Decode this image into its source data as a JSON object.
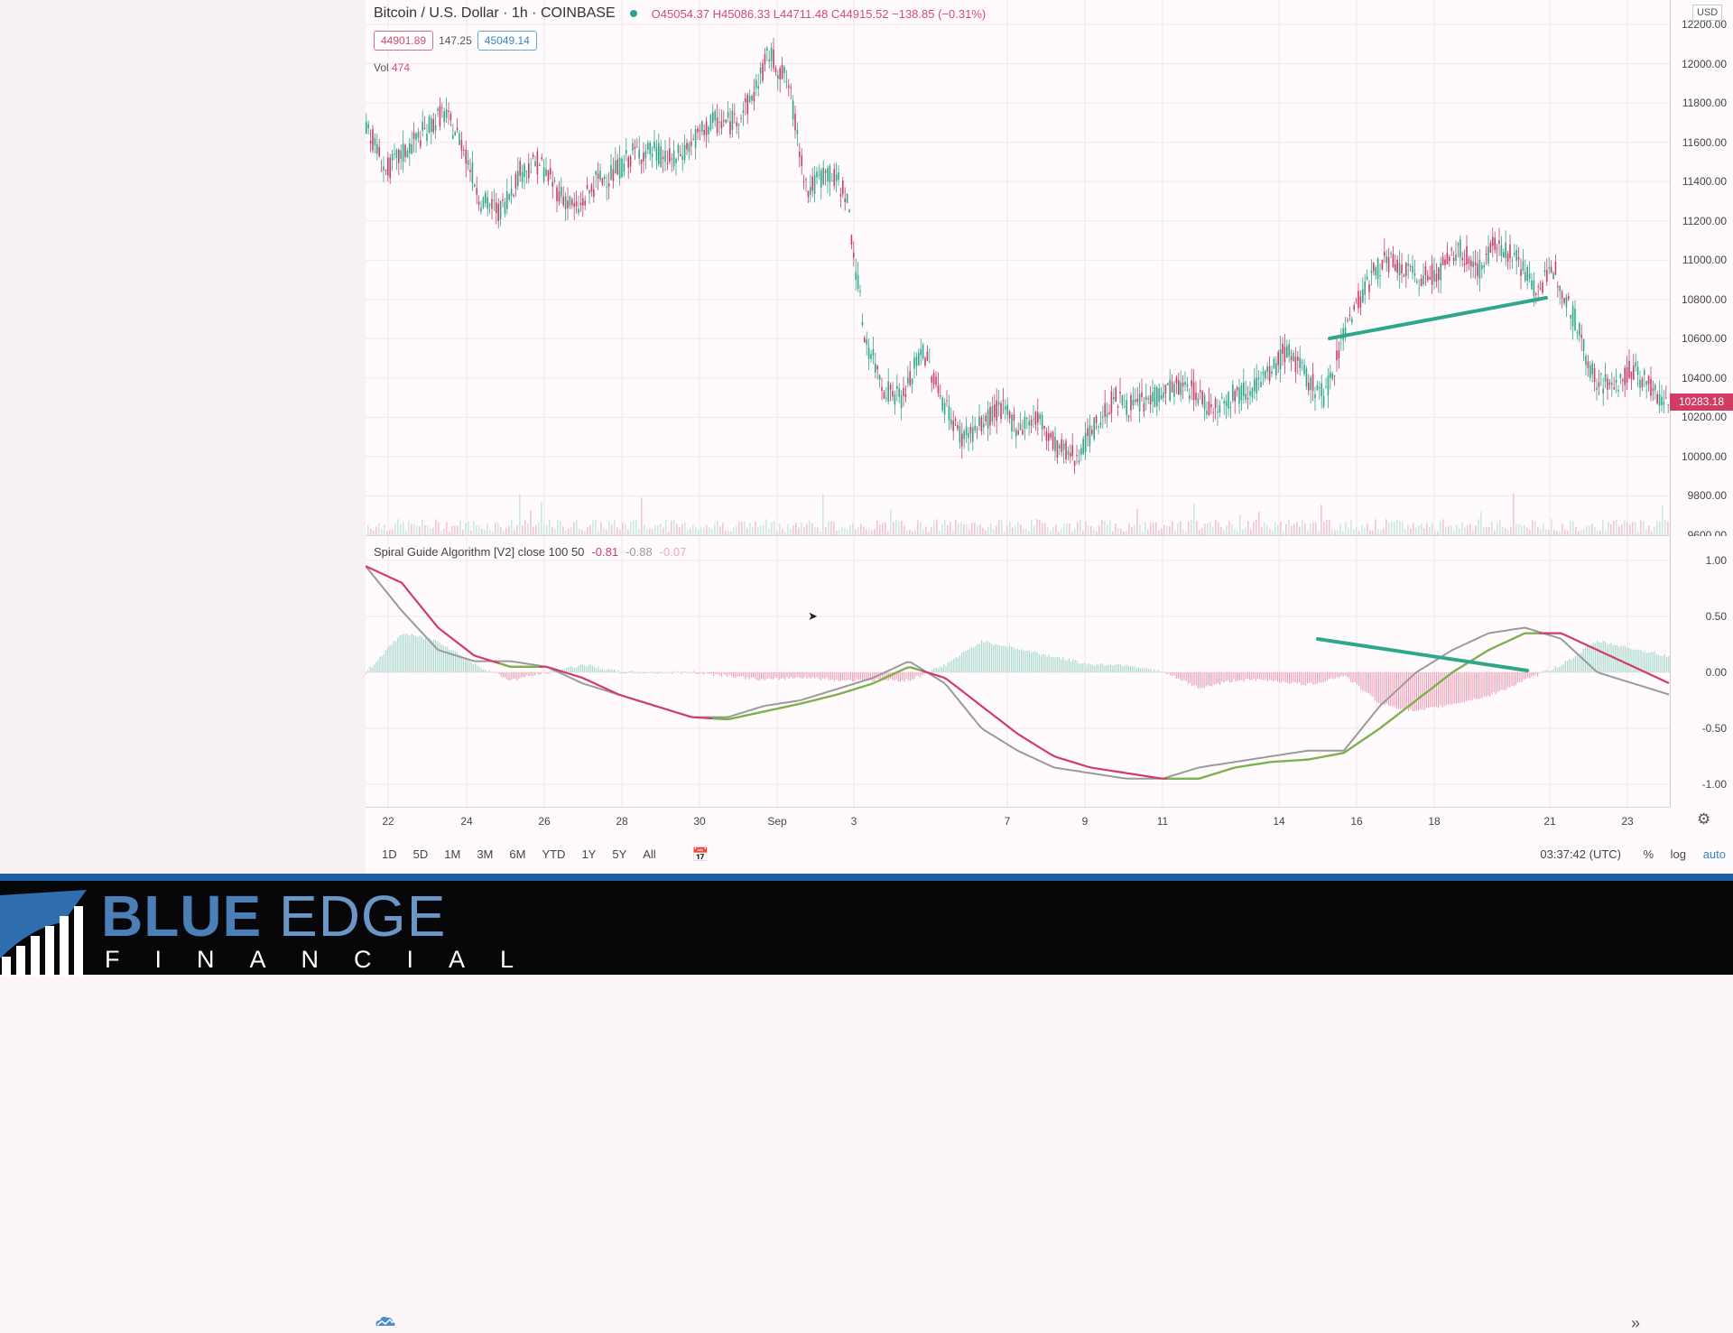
{
  "symbol": {
    "title": "Bitcoin / U.S. Dollar · 1h · COINBASE",
    "ohlc": "O45054.37 H45086.33 L44711.48 C44915.52 −138.85 (−0.31%)",
    "bid": "44901.89",
    "spread": "147.25",
    "ask": "45049.14",
    "volume_label": "Vol",
    "volume_value": "474",
    "last_price": "10283.18",
    "currency": "USD"
  },
  "indicator": {
    "name": "Spiral Guide Algorithm [V2] close 100 50",
    "v1": "-0.81",
    "v2": "-0.88",
    "v3": "-0.07"
  },
  "price_axis": [
    "12200.00",
    "12000.00",
    "11800.00",
    "11600.00",
    "11400.00",
    "11200.00",
    "11000.00",
    "10800.00",
    "10600.00",
    "10400.00",
    "10200.00",
    "10000.00",
    "9800.00",
    "9600.00"
  ],
  "osc_axis": [
    "1.00",
    "0.50",
    "0.00",
    "-0.50",
    "-1.00"
  ],
  "time_axis": [
    "22",
    "24",
    "26",
    "28",
    "30",
    "Sep",
    "3",
    "7",
    "9",
    "11",
    "14",
    "16",
    "18",
    "21",
    "23"
  ],
  "toolbar": {
    "timeframes": [
      "1D",
      "5D",
      "1M",
      "3M",
      "6M",
      "YTD",
      "1Y",
      "5Y",
      "All"
    ],
    "clock": "03:37:42 (UTC)",
    "percent": "%",
    "log": "log",
    "auto": "auto"
  },
  "banner": {
    "brand_bold": "BLUE",
    "brand_thin": "EDGE",
    "sub": "FINANCIAL"
  },
  "colors": {
    "accent_red": "#d23b63",
    "teal": "#2fa78a",
    "green": "#6abd45",
    "grey": "#9a9a9a",
    "blue": "#1d5fa5"
  },
  "chart_data": [
    {
      "type": "line",
      "series": [
        {
          "values": [
            11700,
            11450,
            11550,
            11650,
            11750,
            11600,
            11300,
            11250,
            11450,
            11500,
            11350,
            11250,
            11400,
            11450,
            11550,
            11550,
            11500,
            11600,
            11700,
            11700,
            11800,
            12050,
            11900,
            11350,
            11450,
            11350,
            10600,
            10350,
            10300,
            10550,
            10300,
            10100,
            10150,
            10250,
            10150,
            10200,
            10050,
            10000,
            10150,
            10300,
            10250,
            10300,
            10350,
            10350,
            10250,
            10300,
            10350,
            10400,
            10550,
            10400,
            10300,
            10650,
            10850,
            11000,
            10950,
            10900,
            10950,
            11050,
            10950,
            11100,
            11000,
            10850,
            10950,
            10700,
            10400,
            10350,
            10450,
            10350,
            10250
          ]
        }
      ],
      "ylim": [
        9600,
        12200
      ]
    },
    {
      "type": "line",
      "series": [
        {
          "values": [
            0.95,
            0.55,
            0.2,
            0.1,
            0.1,
            0.05,
            -0.1,
            -0.2,
            -0.3,
            -0.4,
            -0.4,
            -0.3,
            -0.25,
            -0.15,
            -0.05,
            0.1,
            -0.1,
            -0.5,
            -0.7,
            -0.85,
            -0.9,
            -0.95,
            -0.95,
            -0.85,
            -0.8,
            -0.75,
            -0.7,
            -0.7,
            -0.3,
            0,
            0.2,
            0.35,
            0.4,
            0.3,
            0.0,
            -0.1,
            -0.2
          ]
        },
        {
          "values": [
            0.95,
            0.8,
            0.4,
            0.15,
            0.05,
            0.05,
            -0.05,
            -0.2,
            -0.3,
            -0.4,
            -0.42,
            -0.35,
            -0.28,
            -0.2,
            -0.1,
            0.05,
            -0.05,
            -0.3,
            -0.55,
            -0.75,
            -0.85,
            -0.9,
            -0.95,
            -0.95,
            -0.85,
            -0.8,
            -0.78,
            -0.72,
            -0.5,
            -0.25,
            0,
            0.2,
            0.35,
            0.35,
            0.2,
            0.05,
            -0.1
          ]
        }
      ],
      "ylim": [
        -1.1,
        1.1
      ]
    }
  ]
}
